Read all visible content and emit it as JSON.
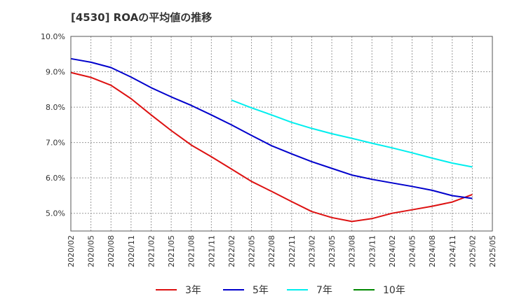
{
  "chart_data": {
    "type": "line",
    "title": "[4530]  ROAの平均値の推移",
    "ylim": [
      4.5,
      10.0
    ],
    "y_ticks": [
      5.0,
      6.0,
      7.0,
      8.0,
      9.0,
      10.0
    ],
    "y_tick_labels": [
      "5.0%",
      "6.0%",
      "7.0%",
      "8.0%",
      "9.0%",
      "10.0%"
    ],
    "x_tick_labels": [
      "2020/02",
      "2020/05",
      "2020/08",
      "2020/11",
      "2021/02",
      "2021/05",
      "2021/08",
      "2021/11",
      "2022/02",
      "2022/05",
      "2022/08",
      "2022/11",
      "2023/02",
      "2023/05",
      "2023/08",
      "2023/11",
      "2024/02",
      "2024/05",
      "2024/08",
      "2024/11",
      "2025/02",
      "2025/05"
    ],
    "grid": true,
    "legend_position": "bottom",
    "series": [
      {
        "name": "3年",
        "color": "#dd1111",
        "start_index": 0,
        "values": [
          8.98,
          8.84,
          8.62,
          8.24,
          7.78,
          7.34,
          6.93,
          6.6,
          6.25,
          5.9,
          5.62,
          5.33,
          5.05,
          4.88,
          4.77,
          4.85,
          5.0,
          5.1,
          5.2,
          5.32,
          5.53
        ]
      },
      {
        "name": "5年",
        "color": "#0000cc",
        "start_index": 0,
        "values": [
          9.37,
          9.27,
          9.12,
          8.85,
          8.55,
          8.29,
          8.05,
          7.78,
          7.5,
          7.2,
          6.91,
          6.68,
          6.46,
          6.27,
          6.08,
          5.96,
          5.86,
          5.76,
          5.65,
          5.5,
          5.42
        ]
      },
      {
        "name": "7年",
        "color": "#00eeee",
        "start_index": 8,
        "values": [
          8.2,
          7.98,
          7.78,
          7.57,
          7.4,
          7.25,
          7.12,
          6.98,
          6.85,
          6.71,
          6.56,
          6.42,
          6.31
        ]
      },
      {
        "name": "10年",
        "color": "#008800",
        "start_index": 8,
        "values": []
      }
    ]
  }
}
